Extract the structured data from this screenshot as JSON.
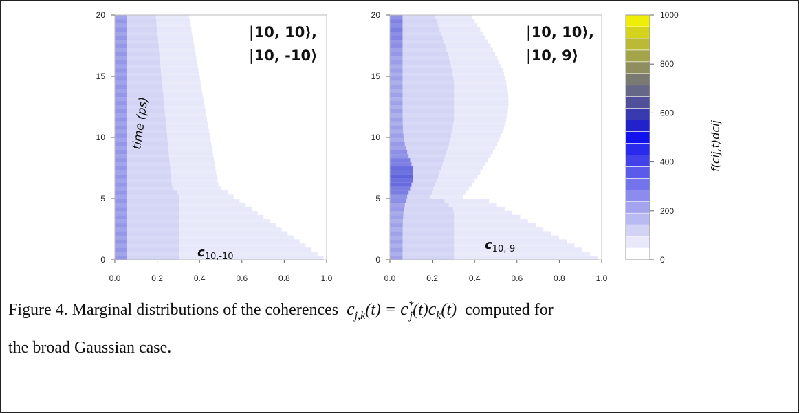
{
  "chart_data": [
    {
      "type": "heatmap",
      "annotation_lines": [
        "|10, 10⟩,",
        "|10, -10⟩"
      ],
      "ylabel": "time (ps)",
      "xlabel": "c10,-10",
      "xlabel_main": "c",
      "xlabel_sub": "10,-10",
      "xlim": [
        0.0,
        1.0
      ],
      "ylim": [
        0,
        20
      ],
      "xticks": [
        "0.0",
        "0.2",
        "0.4",
        "0.6",
        "0.8",
        "1.0"
      ],
      "yticks": [
        "0",
        "5",
        "10",
        "15",
        "20"
      ]
    },
    {
      "type": "heatmap",
      "annotation_lines": [
        "|10, 10⟩,",
        "|10, 9⟩"
      ],
      "xlabel": "c10,-9",
      "xlabel_main": "c",
      "xlabel_sub": "10,-9",
      "xlim": [
        0.0,
        1.0
      ],
      "ylim": [
        0,
        20
      ],
      "xticks": [
        "0.0",
        "0.2",
        "0.4",
        "0.6",
        "0.8",
        "1.0"
      ],
      "yticks": [
        "0",
        "5",
        "10",
        "15",
        "20"
      ]
    }
  ],
  "colorbar": {
    "label": "f(cij,t)dcij",
    "range": [
      0,
      1000
    ],
    "ticks": [
      "0",
      "200",
      "400",
      "600",
      "800",
      "1000"
    ],
    "colors": [
      "#ffffff",
      "#e8e8fa",
      "#d2d2f5",
      "#babaf2",
      "#a3a3f0",
      "#8c8cee",
      "#7373ec",
      "#5a5aeb",
      "#4242ea",
      "#2a2aec",
      "#1212ee",
      "#2222cc",
      "#3a3ab0",
      "#50509a",
      "#666686",
      "#7a7a72",
      "#8e8e5e",
      "#a4a44a",
      "#baba36",
      "#d4d41e",
      "#eeee08"
    ]
  },
  "caption": {
    "prefix": "Figure 4.    Marginal distributions of the coherences",
    "formula": "c_{j,k}(t) = c*_j(t) c_k(t)",
    "suffix": "computed for",
    "line2": "the broad Gaussian case."
  }
}
